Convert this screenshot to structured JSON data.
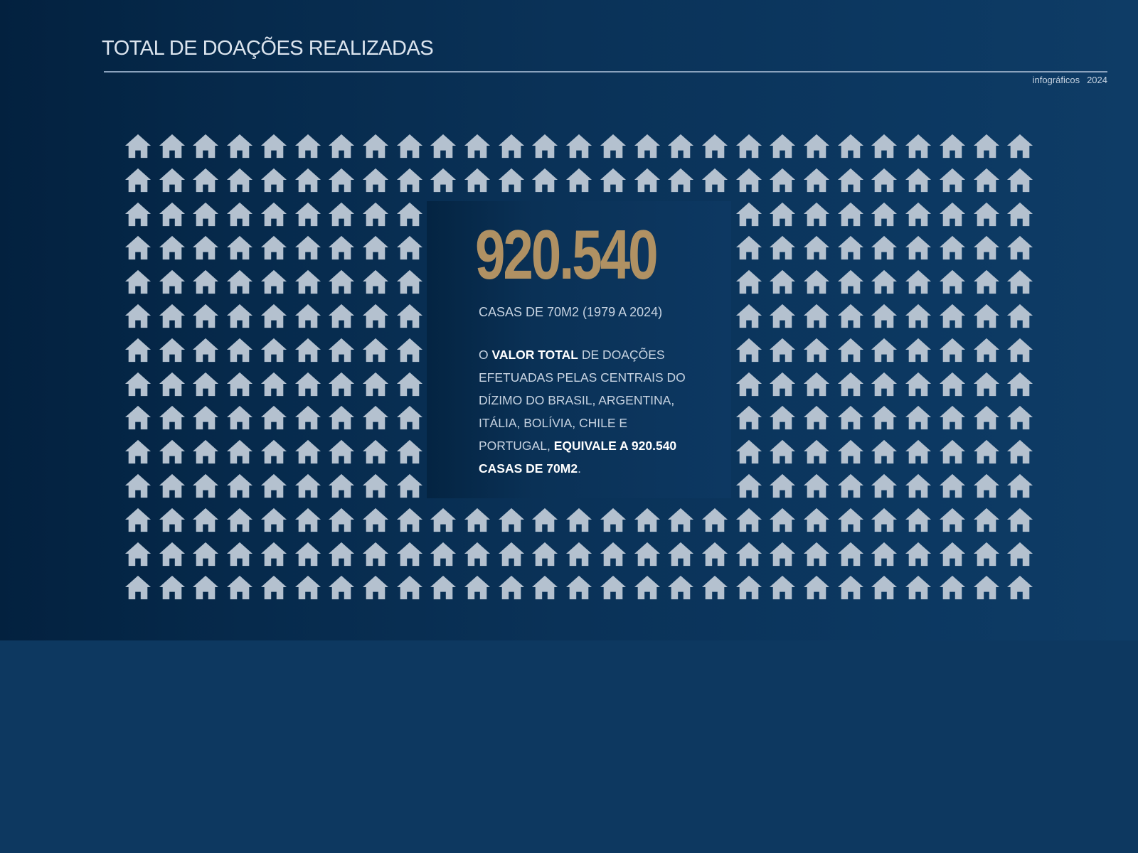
{
  "header": {
    "title": "TOTAL DE DOAÇÕES REALIZADAS",
    "tag": "infográficos",
    "year": "2024"
  },
  "grid": {
    "icon": "house-icon",
    "rows": 14,
    "cols": 27,
    "color": "#b4c1cf"
  },
  "highlight": {
    "number": "920.540",
    "number_color": "#b09163",
    "subtitle": "CASAS DE 70M2 (1979 A 2024)",
    "desc_part1": "O ",
    "desc_bold1": "VALOR TOTAL",
    "desc_part2": " DE DOAÇÕES EFETUADAS PELAS CENTRAIS DO DÍZIMO DO BRASIL, ARGENTINA, ITÁLIA, BOLÍVIA, CHILE E PORTUGAL, ",
    "desc_bold2": "EQUIVALE A 920.540 CASAS DE 70M2",
    "desc_end": "."
  }
}
